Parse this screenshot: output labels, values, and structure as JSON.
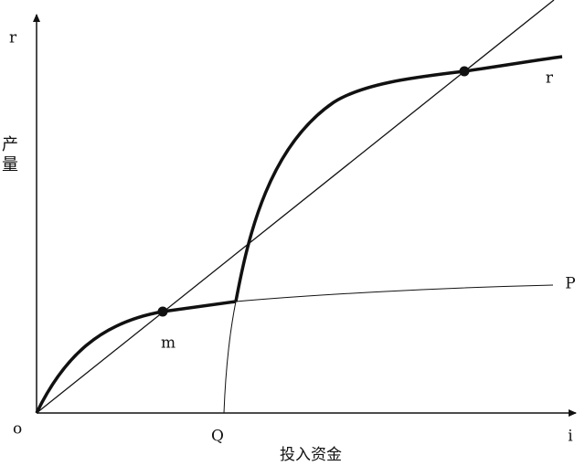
{
  "axes": {
    "y_end": "r",
    "y_title": "产量",
    "origin": "o",
    "x_end": "i",
    "x_title": "投入资金",
    "q_label": "Q"
  },
  "curves": {
    "m_label": "m",
    "p_label": "P",
    "r_label": "r"
  }
}
